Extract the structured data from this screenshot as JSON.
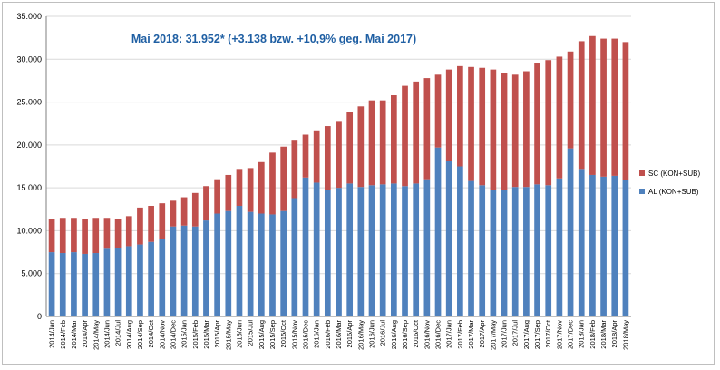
{
  "chart_data": {
    "type": "bar",
    "stacked": true,
    "title": "Mai 2018: 31.952* (+3.138 bzw. +10,9% geg. Mai 2017)",
    "xlabel": "",
    "ylabel": "",
    "ylim": [
      0,
      35000
    ],
    "yticks": [
      "0",
      "5.000",
      "10.000",
      "15.000",
      "20.000",
      "25.000",
      "30.000",
      "35.000"
    ],
    "grid": true,
    "legend_position": "right",
    "categories": [
      "2014/Jan",
      "2014/Feb",
      "2014/Mar",
      "2014/Apr",
      "2014/May",
      "2014/Jun",
      "2014/Jul",
      "2014/Aug",
      "2014/Sep",
      "2014/Oct",
      "2014/Nov",
      "2014/Dec",
      "2015/Jan",
      "2015/Feb",
      "2015/Mar",
      "2015/Apr",
      "2015/May",
      "2015/Jun",
      "2015/Jul",
      "2015/Aug",
      "2015/Sep",
      "2015/Oct",
      "2015/Nov",
      "2015/Dec",
      "2016/Jan",
      "2016/Feb",
      "2016/Mar",
      "2016/Apr",
      "2016/May",
      "2016/Jun",
      "2016/Jul",
      "2016/Aug",
      "2016/Sep",
      "2016/Oct",
      "2016/Nov",
      "2016/Dec",
      "2017/Jan",
      "2017/Feb",
      "2017/Mar",
      "2017/Apr",
      "2017/May",
      "2017/Jun",
      "2017/Jul",
      "2017/Aug",
      "2017/Sep",
      "2017/Oct",
      "2017/Nov",
      "2017/Dec",
      "2018/Jan",
      "2018/Feb",
      "2018/Mar",
      "2018/Apr",
      "2018/May"
    ],
    "series": [
      {
        "name": "AL (KON+SUB)",
        "color": "#4f81bd",
        "values": [
          7500,
          7400,
          7500,
          7300,
          7400,
          7900,
          8000,
          8200,
          8400,
          8700,
          9000,
          10500,
          10600,
          10500,
          11200,
          12000,
          12300,
          12900,
          12200,
          12000,
          11900,
          12300,
          13800,
          16200,
          15600,
          14800,
          15000,
          15500,
          15100,
          15300,
          15400,
          15500,
          15200,
          15500,
          16000,
          19700,
          18100,
          17500,
          15800,
          15300,
          14700,
          14800,
          15100,
          15100,
          15400,
          15300,
          16100,
          19600,
          17200,
          16500,
          16300,
          16400,
          15900
        ]
      },
      {
        "name": "SC (KON+SUB)",
        "color": "#c0504d",
        "values": [
          3900,
          4100,
          4000,
          4100,
          4100,
          3600,
          3400,
          3500,
          4300,
          4200,
          4200,
          3000,
          3300,
          3900,
          4000,
          4000,
          4200,
          4300,
          5100,
          6000,
          7200,
          7500,
          6800,
          5000,
          6100,
          7400,
          7800,
          8300,
          9400,
          9900,
          9800,
          10300,
          11700,
          11900,
          11800,
          8500,
          10700,
          11700,
          13300,
          13700,
          14100,
          13600,
          13100,
          13500,
          14100,
          14600,
          14200,
          11300,
          14900,
          16200,
          16100,
          16000,
          16100
        ]
      }
    ]
  }
}
